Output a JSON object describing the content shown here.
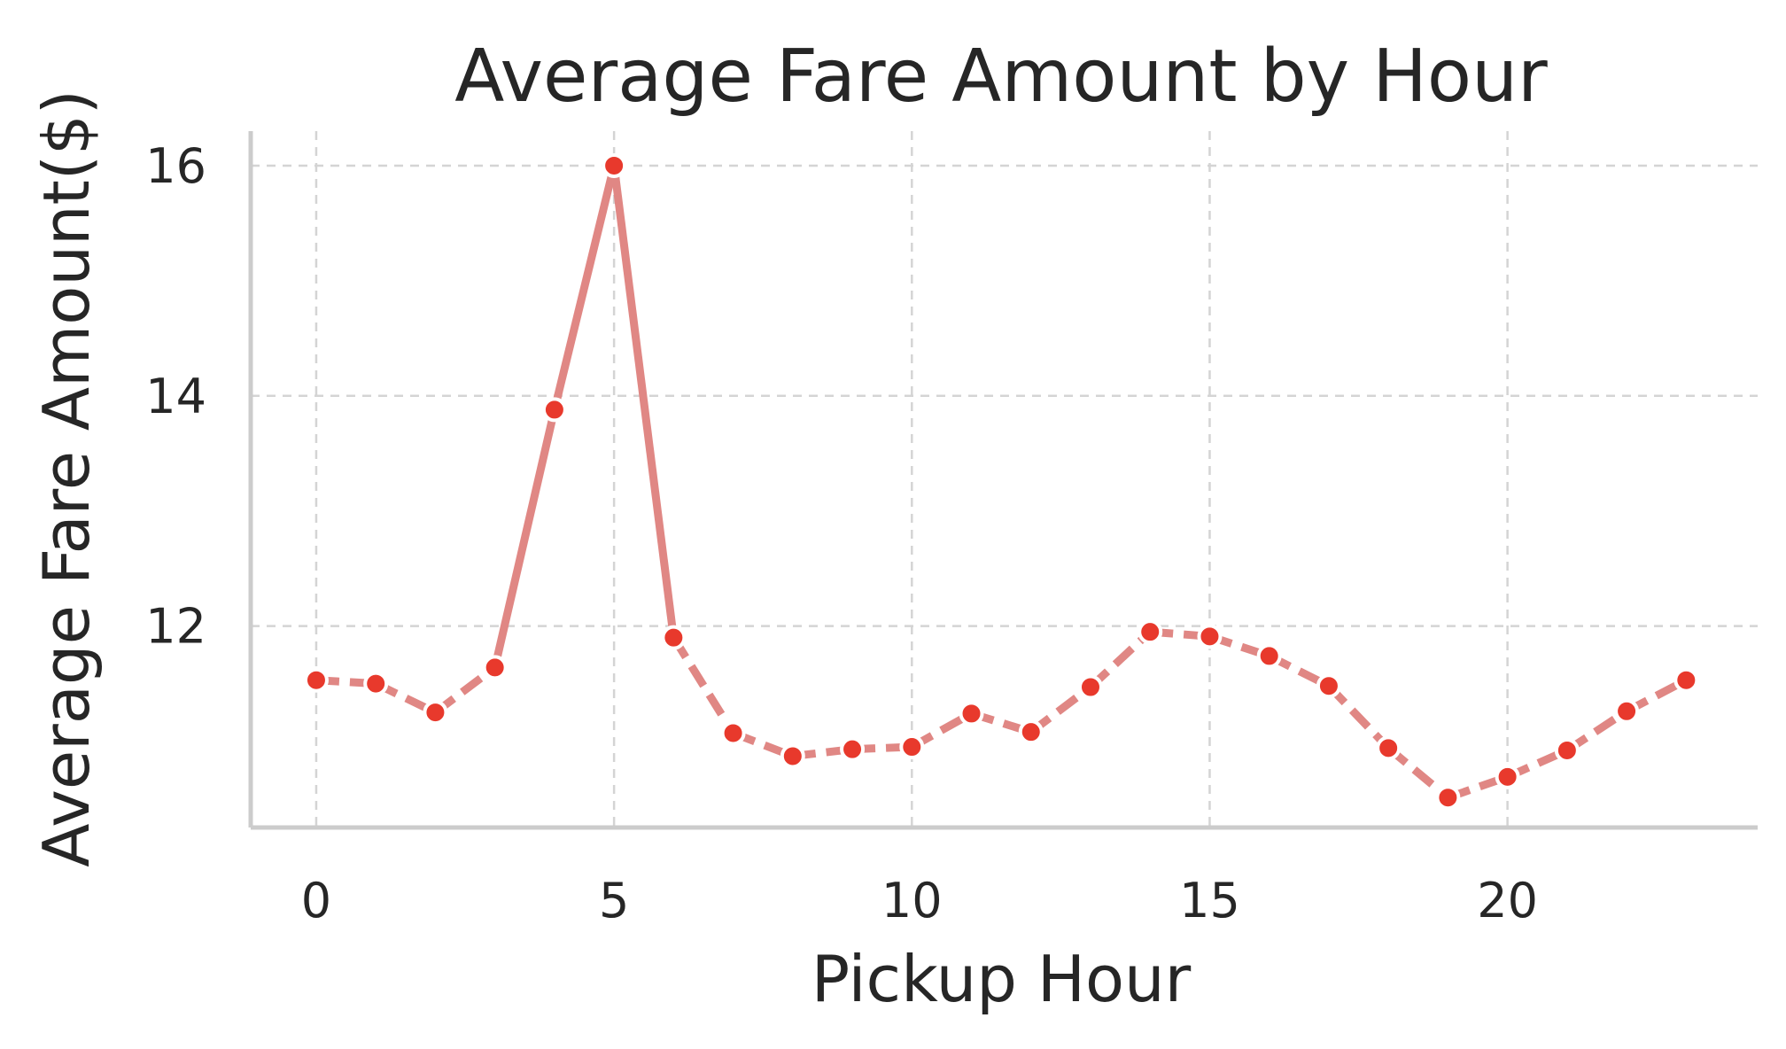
{
  "chart_data": {
    "type": "line",
    "title": "Average Fare Amount by Hour",
    "xlabel": "Pickup Hour",
    "ylabel": "Average Fare Amount($)",
    "xlim": [
      -1.1,
      24.2
    ],
    "ylim": [
      10.25,
      16.3
    ],
    "xticks": [
      0,
      5,
      10,
      15,
      20
    ],
    "yticks": [
      12,
      14,
      16
    ],
    "grid": true,
    "line_color": "#e08784",
    "marker_color": "#e8392c",
    "solid_segments": [
      [
        3,
        6
      ]
    ],
    "series": [
      {
        "x": [
          0,
          1,
          2,
          3,
          4,
          5,
          6,
          7,
          8,
          9,
          10,
          11,
          12,
          13,
          14,
          15,
          16,
          17,
          18,
          19,
          20,
          21,
          22,
          23
        ],
        "y": [
          11.53,
          11.5,
          11.25,
          11.64,
          13.88,
          16.0,
          11.9,
          11.07,
          10.87,
          10.93,
          10.95,
          11.24,
          11.08,
          11.47,
          11.95,
          11.91,
          11.74,
          11.48,
          10.94,
          10.51,
          10.69,
          10.92,
          11.26,
          11.53
        ]
      }
    ]
  }
}
